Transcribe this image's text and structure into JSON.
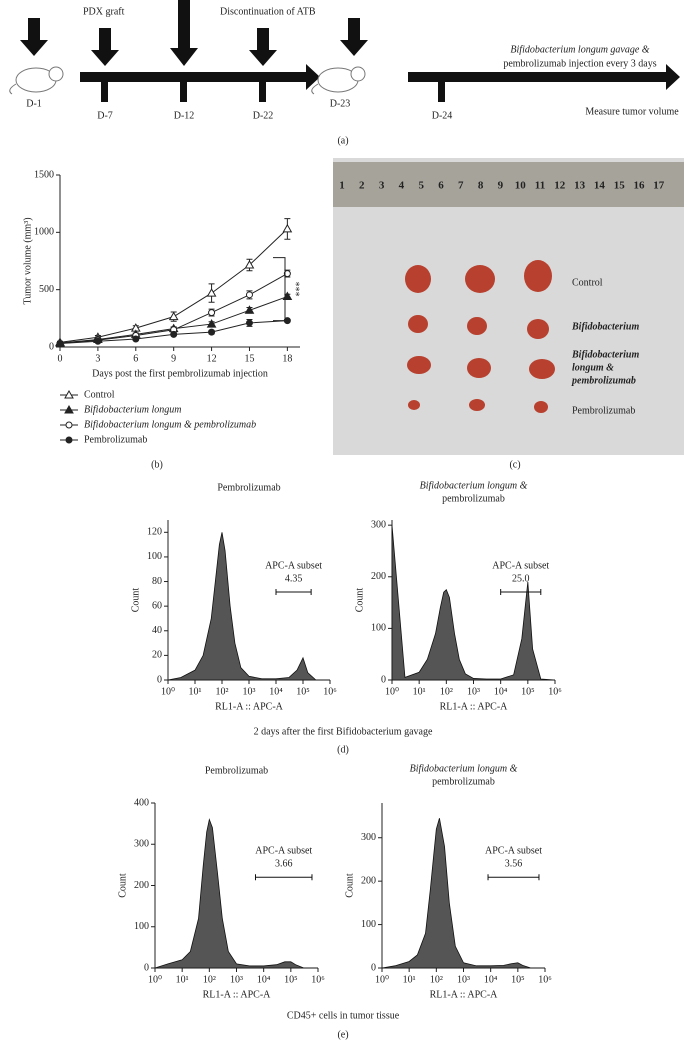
{
  "timeline": {
    "annotations": [
      "PDX graft",
      "Discontinuation of ATB",
      "Bifidobacterium longum gavage &",
      "pembrolizumab injection every 3 days",
      "Measure tumor volume"
    ],
    "days": [
      "D-1",
      "D-7",
      "D-12",
      "D-22",
      "D-23",
      "D-24"
    ],
    "panel": "(a)"
  },
  "chart_data": [
    {
      "type": "line",
      "panel": "(b)",
      "xlabel": "Days post the first pembrolizumab injection",
      "ylabel": "Tumor volume (mm³)",
      "x": [
        0,
        3,
        6,
        9,
        12,
        15,
        18
      ],
      "xlim": [
        0,
        19
      ],
      "xticks": [
        0,
        3,
        6,
        9,
        12,
        15,
        18
      ],
      "ylim": [
        0,
        1500
      ],
      "yticks": [
        0,
        500,
        1000,
        1500
      ],
      "annotation": "***",
      "series": [
        {
          "name": "Control",
          "color": "#222",
          "marker": "triangle",
          "filled": false,
          "values": [
            40,
            85,
            165,
            265,
            470,
            715,
            1030
          ],
          "errors": [
            10,
            15,
            20,
            40,
            80,
            50,
            90
          ]
        },
        {
          "name": "Bifidobacterium longum",
          "color": "#222",
          "marker": "triangle",
          "filled": true,
          "values": [
            35,
            65,
            110,
            160,
            200,
            320,
            440
          ],
          "errors": [
            8,
            10,
            12,
            15,
            20,
            25,
            20
          ]
        },
        {
          "name": "Bifidobacterium longum & pembrolizumab",
          "color": "#222",
          "marker": "circle",
          "filled": false,
          "values": [
            30,
            60,
            100,
            150,
            300,
            455,
            640
          ],
          "errors": [
            8,
            10,
            15,
            20,
            30,
            35,
            30
          ]
        },
        {
          "name": "Pembrolizumab",
          "color": "#222",
          "marker": "circle",
          "filled": true,
          "values": [
            30,
            50,
            70,
            110,
            130,
            210,
            230
          ],
          "errors": [
            5,
            8,
            10,
            12,
            15,
            30,
            10
          ]
        }
      ]
    },
    {
      "type": "area",
      "title": "Pembrolizumab",
      "xlabel": "RL1-A :: APC-A",
      "ylabel": "Count",
      "xlog": true,
      "color": "#555",
      "x": [
        1,
        3,
        10,
        20,
        40,
        60,
        80,
        100,
        130,
        200,
        300,
        500,
        1000,
        3000,
        10000,
        30000,
        60000,
        100000,
        150000,
        300000,
        1000000
      ],
      "values": [
        0,
        2,
        8,
        20,
        50,
        85,
        110,
        120,
        105,
        60,
        30,
        10,
        3,
        1,
        1,
        2,
        8,
        18,
        6,
        0,
        0
      ],
      "xlim": [
        1,
        1000000
      ],
      "xticks": [
        {
          "value": 1,
          "label": "10⁰"
        },
        {
          "value": 10,
          "label": "10¹"
        },
        {
          "value": 100,
          "label": "10²"
        },
        {
          "value": 1000,
          "label": "10³"
        },
        {
          "value": 10000,
          "label": "10⁴"
        },
        {
          "value": 100000,
          "label": "10⁵"
        },
        {
          "value": 1000000,
          "label": "10⁶"
        }
      ],
      "ylim": [
        0,
        130
      ],
      "yticks": [
        0,
        20,
        40,
        60,
        80,
        100,
        120
      ],
      "gate": [
        10000,
        200000
      ],
      "gate_label": "APC-A subset",
      "gate_value": "4.35"
    },
    {
      "type": "area",
      "title": [
        "Bifidobacterium longum &",
        "pembrolizumab"
      ],
      "xlabel": "RL1-A :: APC-A",
      "ylabel": "Count",
      "xlog": true,
      "color": "#555",
      "x": [
        1,
        3,
        10,
        20,
        40,
        60,
        80,
        100,
        130,
        200,
        300,
        500,
        1000,
        3000,
        10000,
        30000,
        60000,
        100000,
        150000,
        300000,
        1000000
      ],
      "values": [
        300,
        5,
        15,
        40,
        90,
        140,
        170,
        175,
        160,
        90,
        40,
        12,
        3,
        2,
        2,
        10,
        80,
        190,
        60,
        2,
        0
      ],
      "xlim": [
        1,
        1000000
      ],
      "xticks": [
        {
          "value": 1,
          "label": "10⁰"
        },
        {
          "value": 10,
          "label": "10¹"
        },
        {
          "value": 100,
          "label": "10²"
        },
        {
          "value": 1000,
          "label": "10³"
        },
        {
          "value": 10000,
          "label": "10⁴"
        },
        {
          "value": 100000,
          "label": "10⁵"
        },
        {
          "value": 1000000,
          "label": "10⁶"
        }
      ],
      "ylim": [
        0,
        310
      ],
      "yticks": [
        0,
        100,
        200,
        300
      ],
      "gate": [
        10000,
        300000
      ],
      "gate_label": "APC-A subset",
      "gate_value": "25.0"
    },
    {
      "type": "area",
      "title": "Pembrolizumab",
      "xlabel": "RL1-A :: APC-A",
      "ylabel": "Count",
      "xlog": true,
      "color": "#555",
      "x": [
        1,
        3,
        10,
        20,
        40,
        60,
        80,
        100,
        130,
        200,
        300,
        500,
        1000,
        3000,
        10000,
        30000,
        60000,
        100000,
        150000,
        300000,
        1000000
      ],
      "values": [
        0,
        10,
        20,
        40,
        120,
        250,
        330,
        360,
        340,
        230,
        120,
        40,
        10,
        5,
        5,
        8,
        15,
        15,
        8,
        0,
        0
      ],
      "xlim": [
        1,
        1000000
      ],
      "xticks": [
        {
          "value": 1,
          "label": "10⁰"
        },
        {
          "value": 10,
          "label": "10¹"
        },
        {
          "value": 100,
          "label": "10²"
        },
        {
          "value": 1000,
          "label": "10³"
        },
        {
          "value": 10000,
          "label": "10⁴"
        },
        {
          "value": 100000,
          "label": "10⁵"
        },
        {
          "value": 1000000,
          "label": "10⁶"
        }
      ],
      "ylim": [
        0,
        400
      ],
      "yticks": [
        0,
        100,
        200,
        300,
        400
      ],
      "gate": [
        5000,
        600000
      ],
      "gate_label": "APC-A subset",
      "gate_value": "3.66"
    },
    {
      "type": "area",
      "title": [
        "Bifidobacterium longum &",
        "pembrolizumab"
      ],
      "xlabel": "RL1-A :: APC-A",
      "ylabel": "Count",
      "xlog": true,
      "color": "#555",
      "x": [
        1,
        3,
        10,
        20,
        40,
        60,
        80,
        100,
        130,
        200,
        300,
        500,
        1000,
        3000,
        10000,
        30000,
        60000,
        100000,
        150000,
        300000,
        1000000
      ],
      "values": [
        0,
        5,
        15,
        30,
        80,
        180,
        260,
        320,
        345,
        280,
        150,
        50,
        12,
        5,
        5,
        6,
        10,
        12,
        6,
        0,
        0
      ],
      "xlim": [
        1,
        1000000
      ],
      "xticks": [
        {
          "value": 1,
          "label": "10⁰"
        },
        {
          "value": 10,
          "label": "10¹"
        },
        {
          "value": 100,
          "label": "10²"
        },
        {
          "value": 1000,
          "label": "10³"
        },
        {
          "value": 10000,
          "label": "10⁴"
        },
        {
          "value": 100000,
          "label": "10⁵"
        },
        {
          "value": 1000000,
          "label": "10⁶"
        }
      ],
      "ylim": [
        0,
        380
      ],
      "yticks": [
        0,
        100,
        200,
        300
      ],
      "gate": [
        8000,
        600000
      ],
      "gate_label": "APC-A subset",
      "gate_value": "3.56"
    }
  ],
  "photo": {
    "ruler": [
      1,
      2,
      3,
      4,
      5,
      6,
      7,
      8,
      9,
      10,
      11,
      12,
      13,
      14,
      15,
      16,
      17
    ],
    "labels": [
      "Control",
      "Bifidobacterium",
      [
        "Bifidobacterium",
        "longum &",
        "pembrolizumab"
      ],
      "Pembrolizumab"
    ],
    "panel": "(c)"
  },
  "panel_d": {
    "caption": "2 days after the first Bifidobacterium gavage",
    "panel": "(d)"
  },
  "panel_e": {
    "caption": "CD45+ cells in tumor tissue",
    "panel": "(e)"
  }
}
